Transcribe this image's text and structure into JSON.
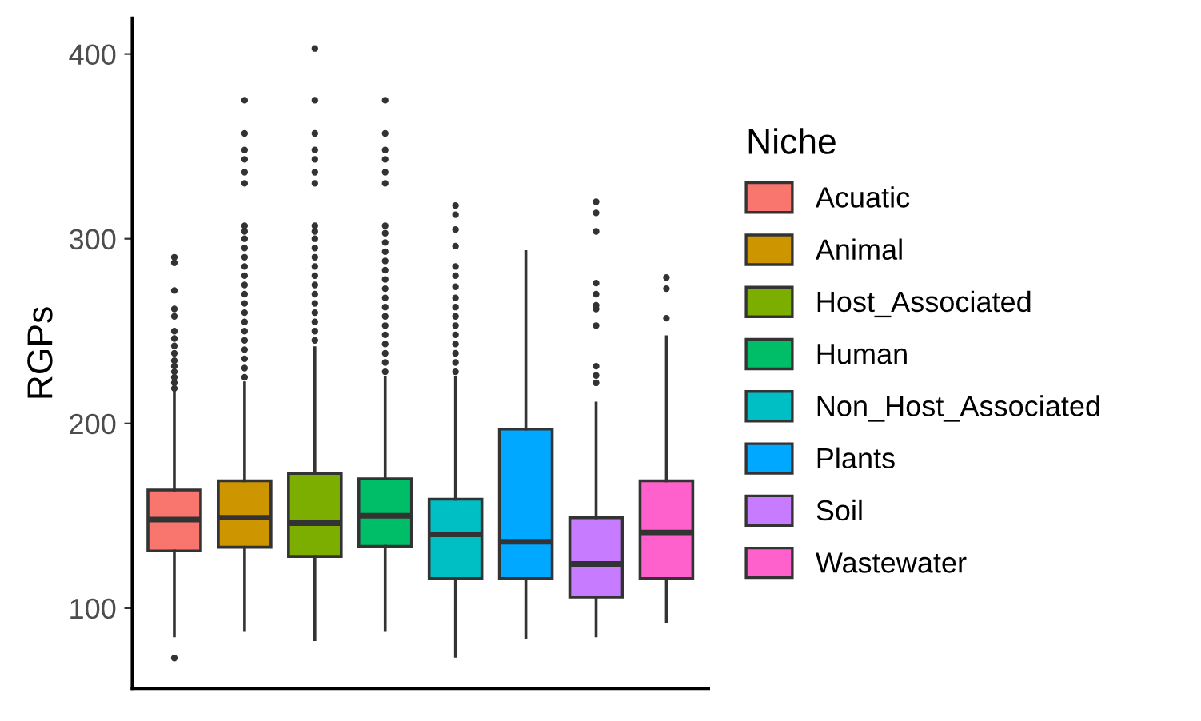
{
  "chart_data": {
    "type": "box",
    "ylabel": "RGPs",
    "legend_title": "Niche",
    "legend": "right",
    "grid": false,
    "tick_labels": "y",
    "categories": [
      null,
      null,
      null,
      null,
      null,
      null,
      null,
      null
    ],
    "ylim": [
      56.5,
      419.5
    ],
    "yticks": [
      100,
      200,
      300,
      400
    ],
    "series": [
      {
        "name": "Acuatic",
        "color": "#f8766d",
        "boxes": [
          {
            "low": 85,
            "q1": 131,
            "median": 148,
            "q3": 164,
            "high": 217,
            "outliers": [
              73,
              219,
              222,
              225,
              228,
              231,
              234,
              238,
              242,
              246,
              250,
              258,
              262,
              272,
              287,
              290
            ]
          },
          null,
          null,
          null,
          null,
          null,
          null,
          null
        ]
      },
      {
        "name": "Animal",
        "color": "#cd9600",
        "boxes": [
          null,
          {
            "low": 88,
            "q1": 133,
            "median": 149,
            "q3": 169,
            "high": 222,
            "outliers": [
              225,
              230,
              235,
              240,
              245,
              250,
              255,
              260,
              265,
              270,
              275,
              280,
              285,
              290,
              295,
              300,
              304,
              307,
              330,
              336,
              343,
              348,
              357,
              375
            ]
          },
          null,
          null,
          null,
          null,
          null,
          null
        ]
      },
      {
        "name": "Host_Associated",
        "color": "#7cae00",
        "boxes": [
          null,
          null,
          {
            "low": 83,
            "q1": 128,
            "median": 146,
            "q3": 173,
            "high": 241,
            "outliers": [
              245,
              250,
              255,
              260,
              265,
              270,
              275,
              280,
              285,
              290,
              295,
              300,
              304,
              307,
              330,
              336,
              343,
              348,
              357,
              375,
              403
            ]
          },
          null,
          null,
          null,
          null,
          null
        ]
      },
      {
        "name": "Human",
        "color": "#00be67",
        "boxes": [
          null,
          null,
          null,
          {
            "low": 88,
            "q1": 133.5,
            "median": 150,
            "q3": 170,
            "high": 225,
            "outliers": [
              228,
              233,
              238,
              243,
              248,
              253,
              258,
              263,
              268,
              273,
              278,
              283,
              288,
              293,
              298,
              303,
              307,
              330,
              336,
              343,
              348,
              357,
              375
            ]
          },
          null,
          null,
          null,
          null
        ]
      },
      {
        "name": "Non_Host_Associated",
        "color": "#00bfc4",
        "boxes": [
          null,
          null,
          null,
          null,
          {
            "low": 74,
            "q1": 116,
            "median": 140,
            "q3": 159,
            "high": 225,
            "outliers": [
              228,
              233,
              238,
              243,
              248,
              253,
              258,
              263,
              268,
              274,
              280,
              285,
              296,
              305,
              313,
              318
            ]
          },
          null,
          null,
          null
        ]
      },
      {
        "name": "Plants",
        "color": "#00a9ff",
        "boxes": [
          null,
          null,
          null,
          null,
          null,
          {
            "low": 84,
            "q1": 116,
            "median": 136,
            "q3": 197,
            "high": 293
          },
          null,
          null
        ]
      },
      {
        "name": "Soil",
        "color": "#c77cff",
        "boxes": [
          null,
          null,
          null,
          null,
          null,
          null,
          {
            "low": 85,
            "q1": 106,
            "median": 124,
            "q3": 149,
            "high": 211,
            "outliers": [
              222,
              226,
              231,
              253,
              262,
              264,
              270,
              276,
              304,
              314,
              320
            ]
          },
          null
        ]
      },
      {
        "name": "Wastewater",
        "color": "#ff61cc",
        "boxes": [
          null,
          null,
          null,
          null,
          null,
          null,
          null,
          {
            "low": 92.5,
            "q1": 116,
            "median": 141,
            "q3": 169,
            "high": 247,
            "outliers": [
              257,
              273,
              279
            ]
          }
        ]
      }
    ]
  }
}
